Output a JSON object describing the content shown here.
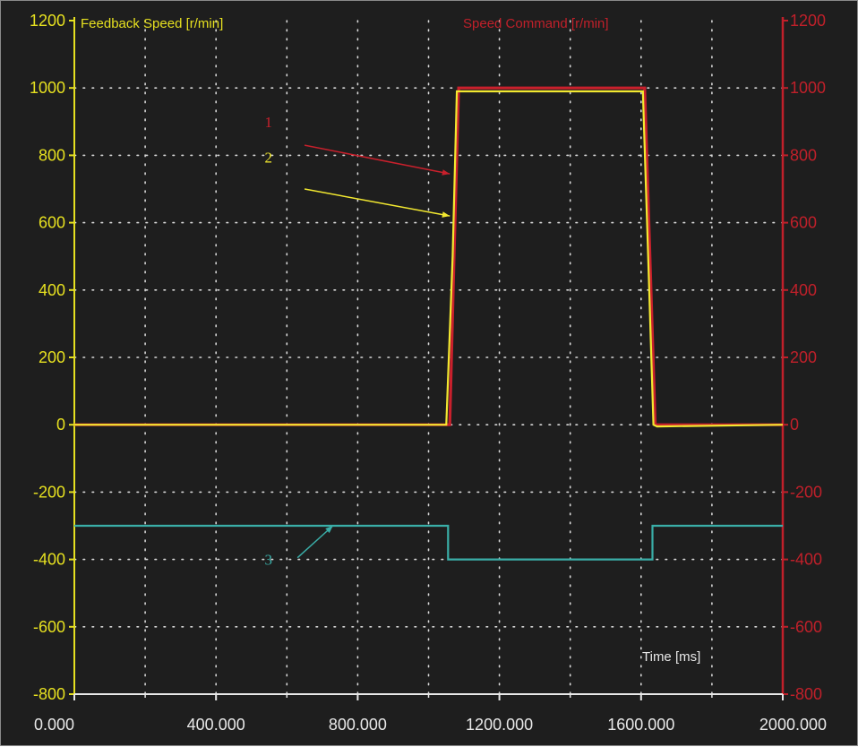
{
  "chart_data": {
    "type": "line",
    "title": "",
    "xlabel": "Time [ms]",
    "ylabel_left": "Feedback Speed [r/min]",
    "ylabel_right": "Speed Command [r/min]",
    "xlim": [
      0,
      2000
    ],
    "ylim_left": [
      -800,
      1200
    ],
    "ylim_right": [
      -800,
      1200
    ],
    "x_ticks": [
      0,
      400,
      800,
      1200,
      1600,
      2000
    ],
    "x_tick_labels": [
      "0.000",
      "400.000",
      "800.000",
      "1200.000",
      "1600.000",
      "2000.000"
    ],
    "x_minor_ticks": [
      200,
      600,
      1000,
      1400,
      1800
    ],
    "y_ticks": [
      -800,
      -600,
      -400,
      -200,
      0,
      200,
      400,
      600,
      800,
      1000,
      1200
    ],
    "y_tick_labels": [
      "-800",
      "-600",
      "-400",
      "-200",
      "0",
      "200",
      "400",
      "600",
      "800",
      "1000",
      "1200"
    ],
    "grid": true,
    "background": "#1e1e1e",
    "series": [
      {
        "axis": "right",
        "color": "#c8202c",
        "x": [
          0,
          1060,
          1072,
          1085,
          1610,
          1625,
          1640,
          2000
        ],
        "y": [
          0,
          0,
          500,
          1000,
          1000,
          500,
          0,
          0
        ]
      },
      {
        "axis": "left",
        "color": "#f2e830",
        "x": [
          0,
          1050,
          1068,
          1080,
          1605,
          1620,
          1635,
          1645,
          2000
        ],
        "y": [
          0,
          0,
          500,
          990,
          990,
          500,
          0,
          -5,
          0
        ]
      },
      {
        "axis": "left",
        "color": "#3aaea8",
        "x": [
          0,
          1055,
          1055,
          1632,
          1632,
          2000
        ],
        "y": [
          -300,
          -300,
          -400,
          -400,
          -300,
          -300
        ]
      }
    ],
    "annotations": [
      {
        "text": "1",
        "color": "#c8202c",
        "text_x": 548,
        "text_y": 900,
        "from_x": 650,
        "from_y": 830,
        "to_x": 1060,
        "to_y": 745
      },
      {
        "text": "2",
        "color": "#f2e830",
        "text_x": 548,
        "text_y": 795,
        "from_x": 650,
        "from_y": 700,
        "to_x": 1060,
        "to_y": 620
      },
      {
        "text": "3",
        "color": "#3aaea8",
        "text_x": 548,
        "text_y": -400,
        "from_x": 630,
        "from_y": -395,
        "to_x": 730,
        "to_y": -300
      }
    ]
  }
}
